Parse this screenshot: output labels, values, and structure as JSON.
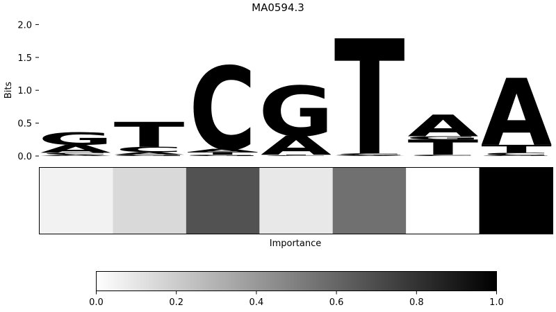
{
  "chart_data": [
    {
      "type": "sequence-logo",
      "title": "MA0594.3",
      "ylabel": "Bits",
      "ylim": [
        0,
        2.0
      ],
      "yticks": [
        "0.0",
        "0.5",
        "1.0",
        "1.5",
        "2.0"
      ],
      "letter_colors": {
        "A": "#4ea64c",
        "C": "#4a4aff",
        "G": "#ffbf47",
        "T": "#ff4d4d"
      },
      "positions": [
        [
          {
            "letter": "A",
            "bits": 0.02
          },
          {
            "letter": "C",
            "bits": 0.03
          },
          {
            "letter": "A",
            "bits": 0.12
          },
          {
            "letter": "G",
            "bits": 0.19
          }
        ],
        [
          {
            "letter": "G",
            "bits": 0.02
          },
          {
            "letter": "A",
            "bits": 0.04
          },
          {
            "letter": "C",
            "bits": 0.08
          },
          {
            "letter": "T",
            "bits": 0.38
          }
        ],
        [
          {
            "letter": "G",
            "bits": 0.02
          },
          {
            "letter": "T",
            "bits": 0.04
          },
          {
            "letter": "A",
            "bits": 0.05
          },
          {
            "letter": "C",
            "bits": 1.26
          }
        ],
        [
          {
            "letter": "C",
            "bits": 0.01
          },
          {
            "letter": "T",
            "bits": 0.01
          },
          {
            "letter": "A",
            "bits": 0.29
          },
          {
            "letter": "G",
            "bits": 0.76
          }
        ],
        [
          {
            "letter": "A",
            "bits": 0.01
          },
          {
            "letter": "G",
            "bits": 0.01
          },
          {
            "letter": "C",
            "bits": 0.02
          },
          {
            "letter": "T",
            "bits": 1.75
          }
        ],
        [
          {
            "letter": "C",
            "bits": 0.02
          },
          {
            "letter": "T",
            "bits": 0.23
          },
          {
            "letter": "G",
            "bits": 0.05
          },
          {
            "letter": "A",
            "bits": 0.33
          }
        ],
        [
          {
            "letter": "G",
            "bits": 0.01
          },
          {
            "letter": "C",
            "bits": 0.04
          },
          {
            "letter": "T",
            "bits": 0.12
          },
          {
            "letter": "A",
            "bits": 1.02
          }
        ]
      ]
    },
    {
      "type": "heatmap",
      "xlabel": "Importance",
      "values": [
        0.05,
        0.15,
        0.68,
        0.09,
        0.56,
        0.0,
        1.0
      ]
    },
    {
      "type": "colorbar",
      "range": [
        0.0,
        1.0
      ],
      "ticks": [
        "0.0",
        "0.2",
        "0.4",
        "0.6",
        "0.8",
        "1.0"
      ]
    }
  ]
}
